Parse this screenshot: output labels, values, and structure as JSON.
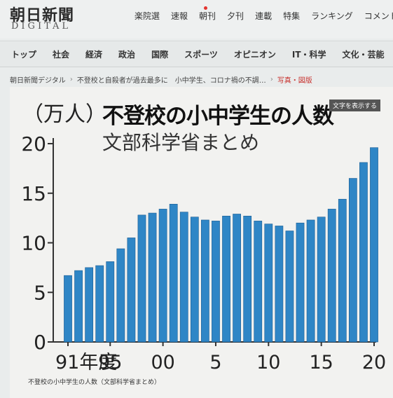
{
  "header": {
    "logo_main": "朝日新聞",
    "logo_sub": "DIGITAL",
    "nav": [
      "楽院選",
      "速報",
      "朝刊",
      "夕刊",
      "連載",
      "特集",
      "ランキング",
      "コメント"
    ]
  },
  "navbar": {
    "items": [
      "トップ",
      "社会",
      "経済",
      "政治",
      "国際",
      "スポーツ",
      "オピニオン",
      "IT・科学",
      "文化・芸能"
    ]
  },
  "breadcrumb": {
    "home": "朝日新聞デジタル",
    "article": "不登校と自殺者が過去最多に　小中学生、コロナ禍の不調…",
    "current": "写真・図版"
  },
  "figure": {
    "text_button": "文字を表示する",
    "caption": "不登校の小中学生の人数（文部科学省まとめ）"
  },
  "colors": {
    "bar": "#2f86c6",
    "bar_edge": "#1d5e94"
  },
  "chart_data": {
    "type": "bar",
    "title": "不登校の小中学生の人数",
    "subtitle": "文部科学省まとめ",
    "unit_label": "（万人）",
    "ylim": [
      0,
      20
    ],
    "yticks": [
      0,
      5,
      10,
      15,
      20
    ],
    "xtick_labels": [
      {
        "category": 1991,
        "label": "91年度"
      },
      {
        "category": 1995,
        "label": "95"
      },
      {
        "category": 2000,
        "label": "00"
      },
      {
        "category": 2005,
        "label": "5"
      },
      {
        "category": 2010,
        "label": "10"
      },
      {
        "category": 2015,
        "label": "15"
      },
      {
        "category": 2020,
        "label": "20"
      }
    ],
    "categories": [
      1991,
      1992,
      1993,
      1994,
      1995,
      1996,
      1997,
      1998,
      1999,
      2000,
      2001,
      2002,
      2003,
      2004,
      2005,
      2006,
      2007,
      2008,
      2009,
      2010,
      2011,
      2012,
      2013,
      2014,
      2015,
      2016,
      2017,
      2018,
      2019,
      2020
    ],
    "values": [
      6.7,
      7.2,
      7.5,
      7.7,
      8.1,
      9.4,
      10.5,
      12.8,
      13.0,
      13.4,
      13.9,
      13.1,
      12.6,
      12.3,
      12.2,
      12.7,
      12.9,
      12.7,
      12.2,
      11.9,
      11.7,
      11.2,
      12.0,
      12.3,
      12.6,
      13.4,
      14.4,
      16.5,
      18.1,
      19.6
    ],
    "grid": false,
    "legend": "none"
  }
}
